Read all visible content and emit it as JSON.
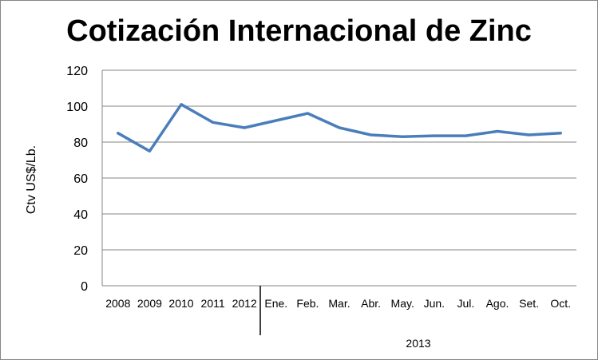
{
  "chart_data": {
    "type": "line",
    "title": "Cotización Internacional de Zinc",
    "ylabel": "Ctv US$/Lb.",
    "xlabel": "",
    "ylim": [
      0,
      120
    ],
    "yticks": [
      0,
      20,
      40,
      60,
      80,
      100,
      120
    ],
    "grid": true,
    "legend": "none",
    "group_label": "2013",
    "categories": [
      "2008",
      "2009",
      "2010",
      "2011",
      "2012",
      "Ene.",
      "Feb.",
      "Mar.",
      "Abr.",
      "May.",
      "Jun.",
      "Jul.",
      "Ago.",
      "Set.",
      "Oct."
    ],
    "series": [
      {
        "color": "#4A7EBB",
        "values": [
          85,
          75,
          101,
          91,
          88,
          92,
          96,
          88,
          84,
          83,
          83.5,
          83.5,
          86,
          84,
          85
        ]
      }
    ]
  }
}
